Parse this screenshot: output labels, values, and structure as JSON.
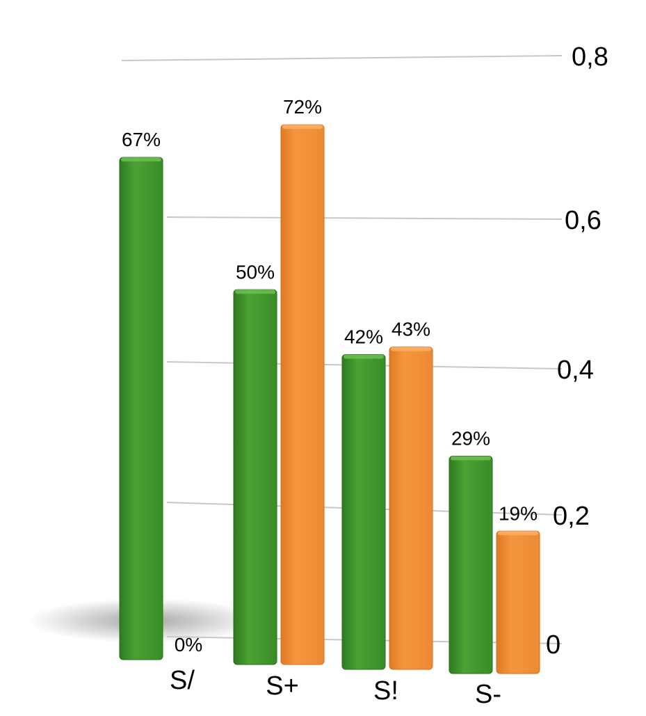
{
  "chart_data": {
    "type": "bar",
    "title": "",
    "xlabel": "",
    "ylabel": "",
    "categories": [
      "S/",
      "S+",
      "S!",
      "S-"
    ],
    "series": [
      {
        "color": "#3f952b",
        "values": [
          0.67,
          0.5,
          0.42,
          0.29
        ],
        "labels": [
          "67%",
          "50%",
          "42%",
          "29%"
        ]
      },
      {
        "color": "#f08d35",
        "values": [
          0.0,
          0.72,
          0.43,
          0.19
        ],
        "labels": [
          "0%",
          "72%",
          "43%",
          "19%"
        ]
      }
    ],
    "ylim": [
      0,
      0.8
    ],
    "yticks": [
      {
        "value": 0,
        "label": "0"
      },
      {
        "value": 0.2,
        "label": "0,2"
      },
      {
        "value": 0.4,
        "label": "0,4"
      },
      {
        "value": 0.6,
        "label": "0,6"
      },
      {
        "value": 0.8,
        "label": "0,8"
      }
    ],
    "y_axis_side": "right",
    "grid": true,
    "legend": "none",
    "style": "3d-perspective"
  }
}
